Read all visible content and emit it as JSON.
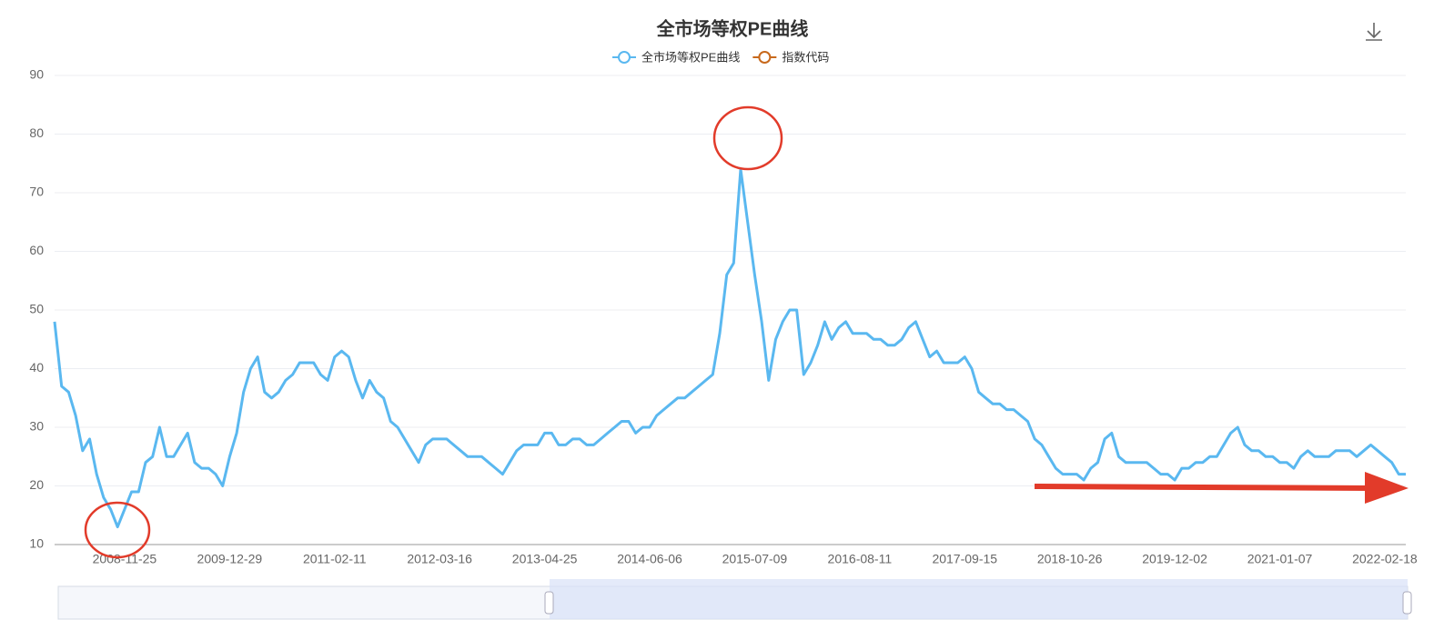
{
  "chart_data": {
    "type": "line",
    "title": "全市场等权PE曲线",
    "categories": [
      null,
      null,
      null,
      null,
      null,
      null,
      null,
      null,
      null,
      null,
      "2008-11-25",
      null,
      null,
      null,
      null,
      null,
      null,
      null,
      null,
      null,
      null,
      null,
      null,
      null,
      null,
      "2009-12-29",
      null,
      null,
      null,
      null,
      null,
      null,
      null,
      null,
      null,
      null,
      null,
      null,
      null,
      null,
      "2011-02-11",
      null,
      null,
      null,
      null,
      null,
      null,
      null,
      null,
      null,
      null,
      null,
      null,
      null,
      null,
      "2012-03-16",
      null,
      null,
      null,
      null,
      null,
      null,
      null,
      null,
      null,
      null,
      null,
      null,
      null,
      null,
      "2013-04-25",
      null,
      null,
      null,
      null,
      null,
      null,
      null,
      null,
      null,
      null,
      null,
      null,
      null,
      null,
      "2014-06-06",
      null,
      null,
      null,
      null,
      null,
      null,
      null,
      null,
      null,
      null,
      null,
      null,
      null,
      null,
      "2015-07-09",
      null,
      null,
      null,
      null,
      null,
      null,
      null,
      null,
      null,
      null,
      null,
      null,
      null,
      null,
      "2016-08-11",
      null,
      null,
      null,
      null,
      null,
      null,
      null,
      null,
      null,
      null,
      null,
      null,
      null,
      null,
      "2017-09-15",
      null,
      null,
      null,
      null,
      null,
      null,
      null,
      null,
      null,
      null,
      null,
      null,
      null,
      null,
      "2018-10-26",
      null,
      null,
      null,
      null,
      null,
      null,
      null,
      null,
      null,
      null,
      null,
      null,
      null,
      null,
      "2019-12-02",
      null,
      null,
      null,
      null,
      null,
      null,
      null,
      null,
      null,
      null,
      null,
      null,
      null,
      null,
      "2021-01-07",
      null,
      null,
      null,
      null,
      null,
      null,
      null,
      null,
      null,
      null,
      null,
      null,
      null,
      null,
      "2022-02-18",
      null,
      null,
      null
    ],
    "series": [
      {
        "name": "全市场等权PE曲线",
        "color": "#5ab8f0",
        "values": [
          48,
          37,
          36,
          32,
          26,
          28,
          22,
          18,
          16,
          13,
          16,
          19,
          19,
          24,
          25,
          30,
          25,
          25,
          27,
          29,
          24,
          23,
          23,
          22,
          20,
          25,
          29,
          36,
          40,
          42,
          36,
          35,
          36,
          38,
          39,
          41,
          41,
          41,
          39,
          38,
          42,
          43,
          42,
          38,
          35,
          38,
          36,
          35,
          31,
          30,
          28,
          26,
          24,
          27,
          28,
          28,
          28,
          27,
          26,
          25,
          25,
          25,
          24,
          23,
          22,
          24,
          26,
          27,
          27,
          27,
          29,
          29,
          27,
          27,
          28,
          28,
          27,
          27,
          28,
          29,
          30,
          31,
          31,
          29,
          30,
          30,
          32,
          33,
          34,
          35,
          35,
          36,
          37,
          38,
          39,
          46,
          56,
          58,
          74,
          65,
          56,
          48,
          38,
          45,
          48,
          50,
          50,
          39,
          41,
          44,
          48,
          45,
          47,
          48,
          46,
          46,
          46,
          45,
          45,
          44,
          44,
          45,
          47,
          48,
          45,
          42,
          43,
          41,
          41,
          41,
          42,
          40,
          36,
          35,
          34,
          34,
          33,
          33,
          32,
          31,
          28,
          27,
          25,
          23,
          22,
          22,
          22,
          21,
          23,
          24,
          28,
          29,
          25,
          24,
          24,
          24,
          24,
          23,
          22,
          22,
          21,
          23,
          23,
          24,
          24,
          25,
          25,
          27,
          29,
          30,
          27,
          26,
          26,
          25,
          25,
          24,
          24,
          23,
          25,
          26,
          25,
          25,
          25,
          26,
          26,
          26,
          25,
          26,
          27,
          26,
          25,
          24,
          22,
          22
        ]
      },
      {
        "name": "指数代码",
        "color": "#c8691c"
      }
    ],
    "ylim": [
      10,
      90
    ],
    "yticks": [
      10,
      20,
      30,
      40,
      50,
      60,
      70,
      80,
      90
    ],
    "grid": true
  }
}
